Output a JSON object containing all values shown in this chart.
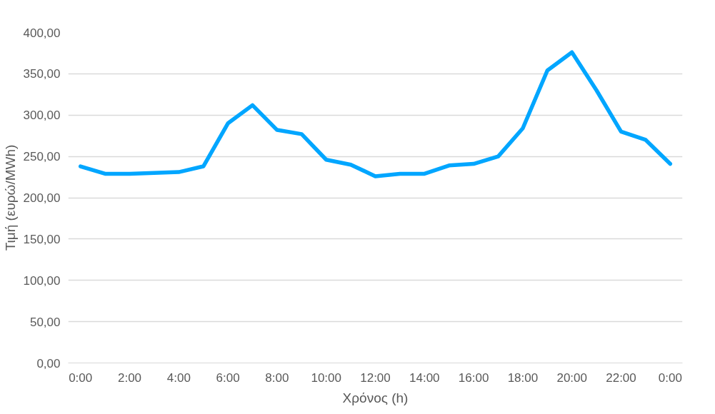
{
  "chart_data": {
    "type": "line",
    "xlabel": "Χρόνος (h)",
    "ylabel": "Τιμή (ευρώ/MWh)",
    "x": [
      0,
      1,
      2,
      3,
      4,
      5,
      6,
      7,
      8,
      9,
      10,
      11,
      12,
      13,
      14,
      15,
      16,
      17,
      18,
      19,
      20,
      21,
      22,
      23,
      24
    ],
    "series": [
      {
        "color": "#00a6ff",
        "values": [
          238,
          229,
          229,
          230,
          231,
          238,
          290,
          312,
          282,
          277,
          246,
          240,
          226,
          229,
          229,
          239,
          241,
          250,
          284,
          354,
          376,
          330,
          280,
          270,
          241
        ]
      }
    ],
    "xlim": [
      -0.5,
      24.5
    ],
    "xticks": [
      {
        "value": 0,
        "label": "0:00"
      },
      {
        "value": 2,
        "label": "2:00"
      },
      {
        "value": 4,
        "label": "4:00"
      },
      {
        "value": 6,
        "label": "6:00"
      },
      {
        "value": 8,
        "label": "8:00"
      },
      {
        "value": 10,
        "label": "10:00"
      },
      {
        "value": 12,
        "label": "12:00"
      },
      {
        "value": 14,
        "label": "14:00"
      },
      {
        "value": 16,
        "label": "16:00"
      },
      {
        "value": 18,
        "label": "18:00"
      },
      {
        "value": 20,
        "label": "20:00"
      },
      {
        "value": 22,
        "label": "22:00"
      },
      {
        "value": 24,
        "label": "0:00"
      }
    ],
    "ylim": [
      0,
      400
    ],
    "yticks": [
      {
        "value": 0,
        "label": "0,00"
      },
      {
        "value": 50,
        "label": "50,00"
      },
      {
        "value": 100,
        "label": "100,00"
      },
      {
        "value": 150,
        "label": "150,00"
      },
      {
        "value": 200,
        "label": "200,00"
      },
      {
        "value": 250,
        "label": "250,00"
      },
      {
        "value": 300,
        "label": "300,00"
      },
      {
        "value": 350,
        "label": "350,00"
      },
      {
        "value": 400,
        "label": "400,00"
      }
    ],
    "grid": "y",
    "marker": "none",
    "line_style": "solid"
  }
}
